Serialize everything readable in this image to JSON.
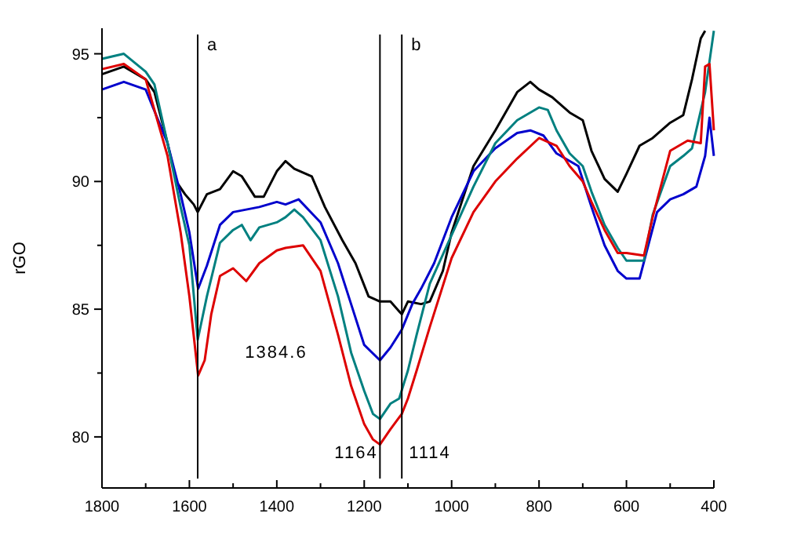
{
  "chart_data": {
    "type": "line",
    "ylabel": "rGO",
    "xlim": [
      1800,
      400
    ],
    "ylim": [
      78,
      96
    ],
    "xticks": [
      1800,
      {
        "value": 1700,
        "label": null
      },
      1600,
      {
        "value": 1500,
        "label": null
      },
      1400,
      {
        "value": 1300,
        "label": null
      },
      1200,
      {
        "value": 1100,
        "label": null
      },
      1000,
      {
        "value": 900,
        "label": null
      },
      800,
      {
        "value": 700,
        "label": null
      },
      600,
      {
        "value": 500,
        "label": null
      },
      400
    ],
    "yticks": [
      80,
      {
        "value": 82.5,
        "label": null
      },
      85,
      {
        "value": 87.5,
        "label": null
      },
      90,
      {
        "value": 92.5,
        "label": null
      },
      95
    ],
    "grid": false,
    "marker": "none",
    "line_style": "solid",
    "series": [
      {
        "color": "#000000",
        "x": [
          1800,
          1750,
          1700,
          1680,
          1650,
          1630,
          1610,
          1590,
          1581,
          1560,
          1530,
          1500,
          1480,
          1450,
          1430,
          1400,
          1380,
          1360,
          1320,
          1290,
          1250,
          1220,
          1190,
          1164,
          1140,
          1114,
          1100,
          1070,
          1050,
          1020,
          1000,
          950,
          900,
          850,
          820,
          800,
          770,
          730,
          700,
          680,
          650,
          620,
          600,
          570,
          540,
          500,
          470,
          450,
          430,
          420
        ],
        "values": [
          94.2,
          94.5,
          94,
          93.5,
          91.5,
          90,
          89.5,
          89.1,
          88.8,
          89.5,
          89.7,
          90.4,
          90.2,
          89.4,
          89.4,
          90.4,
          90.8,
          90.5,
          90.2,
          89,
          87.7,
          86.8,
          85.5,
          85.3,
          85.3,
          84.8,
          85.3,
          85.2,
          85.3,
          86.5,
          88,
          90.6,
          92,
          93.5,
          93.9,
          93.6,
          93.3,
          92.7,
          92.4,
          91.2,
          90.1,
          89.6,
          90.3,
          91.4,
          91.7,
          92.3,
          92.6,
          94,
          95.6,
          95.9
        ]
      },
      {
        "color": "#0000cc",
        "x": [
          1800,
          1750,
          1700,
          1650,
          1620,
          1600,
          1580,
          1560,
          1530,
          1500,
          1470,
          1440,
          1400,
          1380,
          1350,
          1300,
          1260,
          1230,
          1200,
          1164,
          1140,
          1114,
          1090,
          1070,
          1040,
          1000,
          950,
          900,
          850,
          820,
          790,
          760,
          730,
          710,
          680,
          650,
          620,
          600,
          570,
          550,
          530,
          500,
          470,
          440,
          420,
          410,
          400
        ],
        "values": [
          93.6,
          93.9,
          93.6,
          91.5,
          89.5,
          88,
          85.8,
          86.7,
          88.3,
          88.8,
          88.9,
          89,
          89.2,
          89.1,
          89.3,
          88.4,
          86.8,
          85.2,
          83.6,
          83,
          83.5,
          84.2,
          85.2,
          85.8,
          86.8,
          88.6,
          90.4,
          91.3,
          91.9,
          92,
          91.8,
          91.1,
          90.8,
          90.6,
          89,
          87.5,
          86.5,
          86.2,
          86.2,
          87.5,
          88.8,
          89.3,
          89.5,
          89.8,
          91,
          92.5,
          91
        ]
      },
      {
        "color": "#008080",
        "x": [
          1800,
          1750,
          1700,
          1680,
          1650,
          1620,
          1600,
          1581,
          1560,
          1530,
          1500,
          1480,
          1460,
          1440,
          1400,
          1380,
          1360,
          1340,
          1300,
          1260,
          1230,
          1200,
          1180,
          1164,
          1140,
          1120,
          1100,
          1080,
          1050,
          1000,
          950,
          900,
          850,
          800,
          780,
          760,
          730,
          700,
          680,
          650,
          620,
          600,
          560,
          540,
          500,
          470,
          450,
          420,
          400
        ],
        "values": [
          94.8,
          95,
          94.3,
          93.8,
          91.5,
          89,
          87.5,
          83.8,
          85.5,
          87.6,
          88.1,
          88.3,
          87.7,
          88.2,
          88.4,
          88.6,
          88.9,
          88.6,
          87.7,
          85.5,
          83.3,
          81.8,
          80.9,
          80.7,
          81.3,
          81.5,
          82.6,
          84,
          86,
          87.9,
          89.8,
          91.5,
          92.4,
          92.9,
          92.8,
          92,
          91.1,
          90.6,
          89.6,
          88.3,
          87.4,
          86.9,
          86.9,
          88.7,
          90.6,
          91,
          91.3,
          93.5,
          95.9
        ]
      },
      {
        "color": "#dd0000",
        "x": [
          1800,
          1750,
          1700,
          1650,
          1620,
          1600,
          1580,
          1565,
          1550,
          1530,
          1500,
          1470,
          1440,
          1400,
          1380,
          1340,
          1300,
          1260,
          1230,
          1200,
          1180,
          1164,
          1140,
          1114,
          1100,
          1080,
          1050,
          1000,
          950,
          900,
          850,
          800,
          760,
          730,
          700,
          680,
          650,
          620,
          600,
          560,
          540,
          500,
          460,
          430,
          420,
          410,
          400
        ],
        "values": [
          94.4,
          94.6,
          94,
          91,
          88,
          85.5,
          82.4,
          83,
          84.8,
          86.3,
          86.6,
          86.1,
          86.8,
          87.3,
          87.4,
          87.5,
          86.5,
          84,
          82,
          80.5,
          79.9,
          79.7,
          80.3,
          80.9,
          81.5,
          82.6,
          84.3,
          87,
          88.8,
          90,
          90.9,
          91.7,
          91.4,
          90.6,
          90,
          89.2,
          88.1,
          87.2,
          87.2,
          87.1,
          88.6,
          91.2,
          91.6,
          91.5,
          94.5,
          94.6,
          92
        ]
      }
    ],
    "ref_lines": [
      {
        "axis": "x",
        "value": 1581,
        "label": "a"
      },
      {
        "axis": "x",
        "value": 1164,
        "label": null
      },
      {
        "axis": "x",
        "value": 1114,
        "label": "b"
      }
    ],
    "annotations": [
      "1384.6",
      "1164",
      "1114"
    ]
  }
}
